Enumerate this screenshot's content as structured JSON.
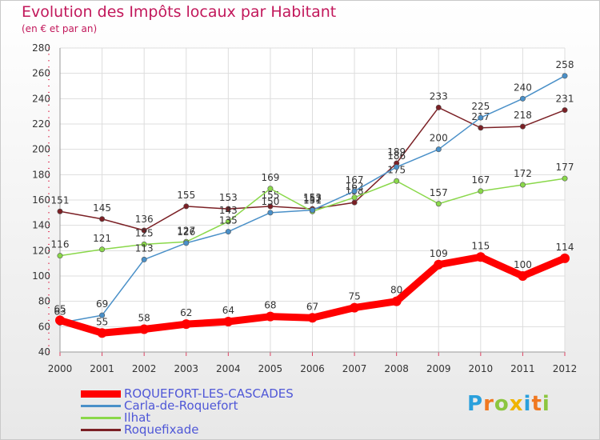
{
  "chart_data": {
    "type": "line",
    "title": "Evolution des Impôts locaux par Habitant",
    "subtitle": "(en € et par an)",
    "xlabel": "",
    "ylabel": "",
    "x": [
      "2000",
      "2001",
      "2002",
      "2003",
      "2004",
      "2005",
      "2006",
      "2007",
      "2008",
      "2009",
      "2010",
      "2011",
      "2012"
    ],
    "ylim": [
      40,
      280
    ],
    "yticks": [
      "40",
      "60",
      "80",
      "100",
      "120",
      "140",
      "160",
      "180",
      "200",
      "220",
      "240",
      "260",
      "280"
    ],
    "grid": true,
    "legend_position": "bottom-left",
    "series": [
      {
        "name": "ROQUEFORT-LES-CASCADES",
        "color": "#ff0000",
        "values": [
          65,
          55,
          58,
          62,
          64,
          68,
          67,
          75,
          80,
          109,
          115,
          100,
          114
        ],
        "labels": [
          "65",
          "55",
          "58",
          "62",
          "64",
          "68",
          "67",
          "75",
          "80",
          "109",
          "115",
          "100",
          "114"
        ]
      },
      {
        "name": "Carla-de-Roquefort",
        "color": "#4a90c8",
        "values": [
          63,
          69,
          113,
          126,
          135,
          150,
          152,
          167,
          186,
          200,
          225,
          240,
          258
        ],
        "labels": [
          "63",
          "69",
          "113",
          "126",
          "135",
          "150",
          "152",
          "167",
          "186",
          "200",
          "225",
          "240",
          "258"
        ]
      },
      {
        "name": "Ilhat",
        "color": "#8ad84a",
        "values": [
          116,
          121,
          125,
          127,
          143,
          169,
          151,
          162,
          175,
          157,
          167,
          172,
          177
        ],
        "labels": [
          "116",
          "121",
          "125",
          "127",
          "143",
          "169",
          "151",
          "162",
          "175",
          "157",
          "167",
          "172",
          "177"
        ]
      },
      {
        "name": "Roquefixade",
        "color": "#7b2025",
        "values": [
          151,
          145,
          136,
          155,
          153,
          155,
          153,
          158,
          189,
          233,
          217,
          218,
          231
        ],
        "labels": [
          "151",
          "145",
          "136",
          "155",
          "153",
          "155",
          "153",
          "158",
          "189",
          "233",
          "217",
          "218",
          "231"
        ]
      }
    ]
  },
  "brand": {
    "letters": [
      "P",
      "r",
      "o",
      "x",
      "i",
      "t",
      "i"
    ],
    "colors": [
      "#2aa0dc",
      "#f07820",
      "#8cc63f",
      "#f0b400",
      "#2aa0dc",
      "#f07820",
      "#8cc63f"
    ]
  }
}
